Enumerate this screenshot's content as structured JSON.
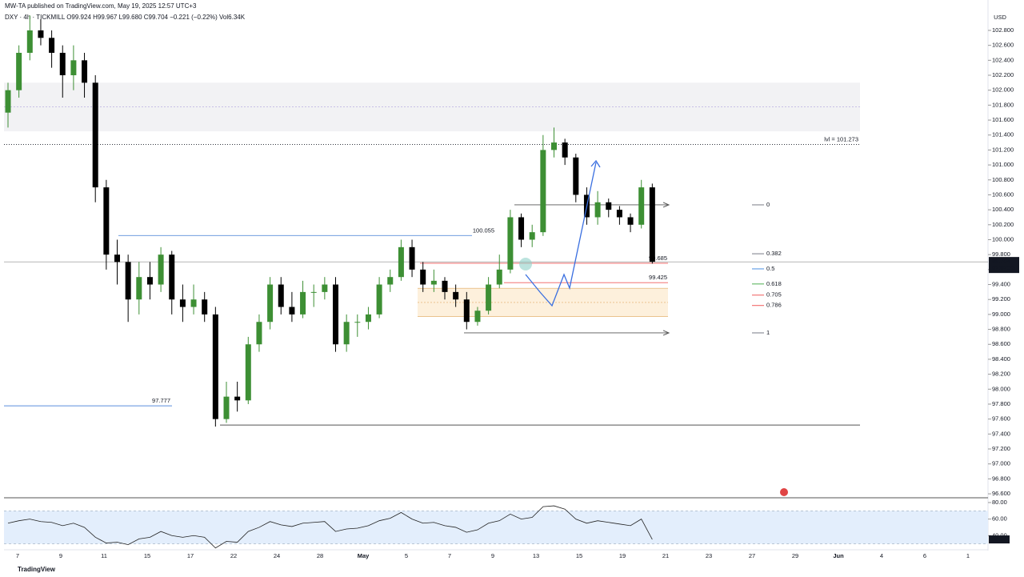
{
  "header": {
    "publisher": "MW-TA published on TradingView.com, May 19, 2025 12:57 UTC+3",
    "legend": "DXY · 4h · TICKMILL  O99.924 H99.967 L99.680 C99.704 −0.221 (−0.22%) Vol6.34K"
  },
  "footer": {
    "brand": "TradingView"
  },
  "chart_data": {
    "type": "candlestick",
    "currency": "USD",
    "x_labels": [
      "7",
      "9",
      "11",
      "15",
      "17",
      "22",
      "24",
      "28",
      "May",
      "5",
      "7",
      "9",
      "13",
      "15",
      "19",
      "21",
      "23",
      "27",
      "29",
      "Jun",
      "4",
      "6",
      "1"
    ],
    "up_color": "#3d8f34",
    "down_color": "#000000",
    "open": [
      101.7,
      102.0,
      102.5,
      102.8,
      102.7,
      102.5,
      102.2,
      102.4,
      102.1,
      100.7,
      99.8,
      99.7,
      99.2,
      99.5,
      99.4,
      99.8,
      99.2,
      99.1,
      99.2,
      99.0,
      97.6,
      97.9,
      97.85,
      98.6,
      98.9,
      99.4,
      99.1,
      99.0,
      99.3,
      99.3,
      99.4,
      98.6,
      98.9,
      98.9,
      99.0,
      99.4,
      99.5,
      99.9,
      99.6,
      99.4,
      99.45,
      99.3,
      99.2,
      98.9,
      99.05,
      99.4,
      99.6,
      100.3,
      100.0,
      100.1,
      101.2,
      101.3,
      101.1,
      100.6,
      100.3,
      100.5,
      100.4,
      100.3,
      100.2,
      100.7
    ],
    "high": [
      102.1,
      102.6,
      103.0,
      102.95,
      102.8,
      102.6,
      102.6,
      102.5,
      102.2,
      100.8,
      100.0,
      99.8,
      99.7,
      99.7,
      99.9,
      99.85,
      99.4,
      99.4,
      99.3,
      99.1,
      98.1,
      98.1,
      98.7,
      99.0,
      99.5,
      99.5,
      99.3,
      99.45,
      99.4,
      99.5,
      99.5,
      99.0,
      99.0,
      99.1,
      99.5,
      99.6,
      100.0,
      100.0,
      99.7,
      99.6,
      99.5,
      99.4,
      99.3,
      99.1,
      99.5,
      99.8,
      100.4,
      100.35,
      100.2,
      101.4,
      101.5,
      101.35,
      101.15,
      100.7,
      100.65,
      100.55,
      100.45,
      100.35,
      100.8,
      100.75
    ],
    "low": [
      101.5,
      101.9,
      102.4,
      102.6,
      102.3,
      101.9,
      102.0,
      101.9,
      100.5,
      99.6,
      99.4,
      98.9,
      99.0,
      99.2,
      99.3,
      99.0,
      98.9,
      99.0,
      98.9,
      97.5,
      97.55,
      97.7,
      97.8,
      98.5,
      98.8,
      99.0,
      98.9,
      98.95,
      99.1,
      99.2,
      98.5,
      98.5,
      98.7,
      98.8,
      98.95,
      99.3,
      99.45,
      99.5,
      99.3,
      99.3,
      99.2,
      99.1,
      98.8,
      98.85,
      99.0,
      99.35,
      99.55,
      99.9,
      99.9,
      100.05,
      101.1,
      101.0,
      100.5,
      100.2,
      100.2,
      100.3,
      100.2,
      100.1,
      100.15,
      99.68
    ],
    "close": [
      102.0,
      102.5,
      102.8,
      102.7,
      102.5,
      102.2,
      102.4,
      102.1,
      100.7,
      99.8,
      99.7,
      99.2,
      99.5,
      99.4,
      99.8,
      99.2,
      99.1,
      99.2,
      99.0,
      97.6,
      97.9,
      97.85,
      98.6,
      98.9,
      99.4,
      99.1,
      99.0,
      99.3,
      99.3,
      99.4,
      98.6,
      98.9,
      98.9,
      99.0,
      99.4,
      99.5,
      99.9,
      99.6,
      99.4,
      99.45,
      99.3,
      99.2,
      98.9,
      99.05,
      99.4,
      99.6,
      100.3,
      100.0,
      100.1,
      101.2,
      101.3,
      101.1,
      100.6,
      100.3,
      100.5,
      100.4,
      100.3,
      100.2,
      100.7,
      99.704
    ],
    "ylim": [
      96.547,
      103.046
    ],
    "yticks": [
      {
        "value": 102.8,
        "label": "102.800"
      },
      {
        "value": 102.6,
        "label": "102.600"
      },
      {
        "value": 102.4,
        "label": "102.400"
      },
      {
        "value": 102.2,
        "label": "102.200"
      },
      {
        "value": 102.0,
        "label": "102.000"
      },
      {
        "value": 101.8,
        "label": "101.800"
      },
      {
        "value": 101.6,
        "label": "101.600"
      },
      {
        "value": 101.4,
        "label": "101.400"
      },
      {
        "value": 101.2,
        "label": "101.200"
      },
      {
        "value": 101.0,
        "label": "101.000"
      },
      {
        "value": 100.8,
        "label": "100.800"
      },
      {
        "value": 100.6,
        "label": "100.600"
      },
      {
        "value": 100.4,
        "label": "100.400"
      },
      {
        "value": 100.2,
        "label": "100.200"
      },
      {
        "value": 100.0,
        "label": "100.000"
      },
      {
        "value": 99.8,
        "label": "99.800"
      },
      {
        "value": 99.6,
        "label": "99.600"
      },
      {
        "value": 99.4,
        "label": "99.400"
      },
      {
        "value": 99.2,
        "label": "99.200"
      },
      {
        "value": 99.0,
        "label": "99.000"
      },
      {
        "value": 98.8,
        "label": "98.800"
      },
      {
        "value": 98.6,
        "label": "98.600"
      },
      {
        "value": 98.4,
        "label": "98.400"
      },
      {
        "value": 98.2,
        "label": "98.200"
      },
      {
        "value": 98.0,
        "label": "98.000"
      },
      {
        "value": 97.8,
        "label": "97.800"
      },
      {
        "value": 97.6,
        "label": "97.600"
      },
      {
        "value": 97.4,
        "label": "97.400"
      },
      {
        "value": 97.2,
        "label": "97.200"
      },
      {
        "value": 97.0,
        "label": "97.000"
      },
      {
        "value": 96.8,
        "label": "96.800"
      },
      {
        "value": 96.6,
        "label": "96.600"
      }
    ],
    "last_price": 99.704,
    "countdown": "02:02:25",
    "zones": [
      {
        "from": 101.45,
        "to": 102.1,
        "mid": 101.78,
        "color": "#f2f2f4",
        "line_color": "#9c8fd8"
      },
      {
        "from": 98.97,
        "to": 99.35,
        "mid": 99.16,
        "color": "#fdf0dc",
        "line_color": "#e0a860"
      }
    ],
    "levels": [
      {
        "value": 101.273,
        "label": "lvl = 101.273",
        "color": "#131722",
        "dash": "1,2"
      },
      {
        "value": 100.055,
        "color": "#5b8fdc"
      },
      {
        "value": 97.777,
        "color": "#5b8fdc"
      },
      {
        "value": 99.685,
        "color": "#f05a5a"
      },
      {
        "value": 99.425,
        "color": "#f05a5a"
      },
      {
        "value": 97.52,
        "color": "#555555"
      }
    ],
    "fib": {
      "from": 100.466,
      "to": 98.753,
      "ratios": [
        0,
        0.382,
        0.5,
        0.618,
        0.705,
        0.786,
        1
      ],
      "colors": [
        "#787b86",
        "#787b86",
        "#4a90e2",
        "#4caf50",
        "#f05a5a",
        "#f05a5a",
        "#787b86"
      ]
    },
    "rsi": {
      "values": [
        55,
        58,
        60,
        57,
        56,
        52,
        55,
        50,
        38,
        31,
        32,
        29,
        36,
        38,
        45,
        40,
        38,
        40,
        38,
        25,
        33,
        32,
        45,
        50,
        57,
        53,
        51,
        55,
        56,
        57,
        45,
        48,
        49,
        52,
        58,
        61,
        68,
        60,
        55,
        56,
        52,
        50,
        44,
        47,
        55,
        58,
        66,
        60,
        62,
        75,
        76,
        72,
        60,
        55,
        58,
        56,
        54,
        52,
        60,
        35.36
      ],
      "ylim": [
        23.8,
        84.8
      ],
      "band": [
        30,
        70
      ],
      "yticks": [
        {
          "value": 80,
          "label": "80.00"
        },
        {
          "value": 60,
          "label": "60.00"
        },
        {
          "value": 40,
          "label": "40.00"
        }
      ],
      "last": 35.36
    }
  }
}
